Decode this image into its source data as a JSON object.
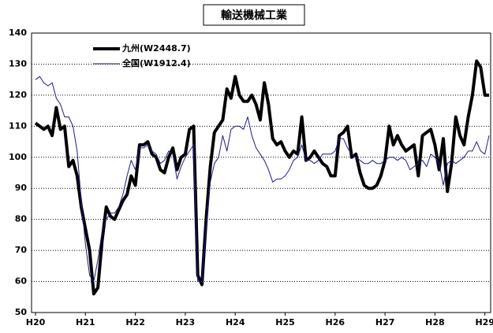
{
  "chart_data": {
    "type": "line",
    "title": "輸送機械工業",
    "categories": [
      "H20",
      null,
      null,
      null,
      null,
      null,
      null,
      null,
      null,
      null,
      null,
      null,
      "H21",
      null,
      null,
      null,
      null,
      null,
      null,
      null,
      null,
      null,
      null,
      null,
      "H22",
      null,
      null,
      null,
      null,
      null,
      null,
      null,
      null,
      null,
      null,
      null,
      "H23",
      null,
      null,
      null,
      null,
      null,
      null,
      null,
      null,
      null,
      null,
      null,
      "H24",
      null,
      null,
      null,
      null,
      null,
      null,
      null,
      null,
      null,
      null,
      null,
      "H25",
      null,
      null,
      null,
      null,
      null,
      null,
      null,
      null,
      null,
      null,
      null,
      "H26",
      null,
      null,
      null,
      null,
      null,
      null,
      null,
      null,
      null,
      null,
      null,
      "H27",
      null,
      null,
      null,
      null,
      null,
      null,
      null,
      null,
      null,
      null,
      null,
      "H28",
      null,
      null,
      null,
      null,
      null,
      null,
      null,
      null,
      null,
      null,
      null,
      "H29",
      null
    ],
    "series": [
      {
        "name": "九州(W2448.7)",
        "color": "#000000",
        "width": 4,
        "values": [
          111,
          110,
          109,
          110,
          107,
          116,
          109,
          110,
          97,
          99,
          94,
          84,
          77,
          70,
          56,
          58,
          73,
          84,
          81,
          80,
          83,
          86,
          88,
          94,
          91,
          104,
          104,
          105,
          101,
          100,
          96,
          95,
          100,
          103,
          96,
          100,
          101,
          109,
          110,
          62,
          59,
          80,
          97,
          108,
          110,
          112,
          122,
          119,
          126,
          120,
          118,
          118,
          120,
          117,
          112,
          124,
          117,
          106,
          104,
          105,
          102,
          100,
          102,
          101,
          113,
          99,
          100,
          102,
          100,
          98,
          97,
          94,
          94,
          107,
          108,
          110,
          100,
          101,
          95,
          91,
          90,
          90,
          91,
          94,
          99,
          110,
          104,
          107,
          104,
          102,
          103,
          104,
          94,
          107,
          108,
          109,
          104,
          96,
          106,
          89,
          98,
          113,
          107,
          104,
          113,
          120,
          131,
          129,
          120,
          120
        ]
      },
      {
        "name": "全国(W1912.4)",
        "color": "#1a1a8c",
        "width": 1,
        "values": [
          125,
          126,
          124,
          123,
          124,
          119,
          117,
          113,
          113,
          110,
          102,
          86,
          72,
          62,
          60,
          67,
          76,
          80,
          82,
          82,
          84,
          88,
          94,
          99,
          96,
          103,
          103,
          104,
          102,
          101,
          98,
          99,
          102,
          101,
          93,
          97,
          100,
          102,
          104,
          60,
          60,
          78,
          92,
          98,
          100,
          107,
          102,
          109,
          110,
          110,
          109,
          113,
          107,
          103,
          101,
          99,
          96,
          92,
          93,
          93,
          94,
          96,
          99,
          100,
          104,
          99,
          99,
          98,
          99,
          101,
          101,
          101,
          102,
          106,
          106,
          103,
          101,
          100,
          99,
          98,
          98,
          99,
          98,
          98,
          99,
          100,
          100,
          99,
          100,
          99,
          96,
          97,
          98,
          99,
          97,
          101,
          100,
          98,
          91,
          98,
          99,
          98,
          99,
          100,
          102,
          102,
          105,
          102,
          101,
          107
        ]
      }
    ],
    "ylim": [
      50,
      140
    ],
    "yticks": [
      50,
      60,
      70,
      80,
      90,
      100,
      110,
      120,
      130,
      140
    ],
    "grid": true
  }
}
